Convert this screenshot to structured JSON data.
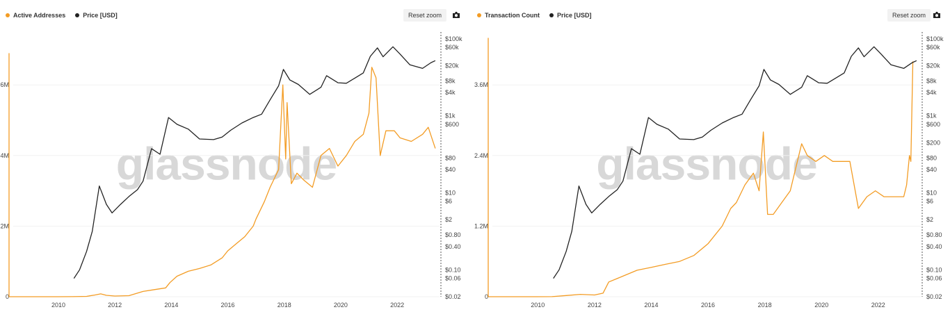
{
  "reset_zoom_label": "Reset zoom",
  "watermark": "glassnode",
  "colors": {
    "orange": "#f39c24",
    "black": "#222222",
    "grid": "#ececec"
  },
  "chart_data": [
    {
      "type": "line",
      "series": [
        {
          "name": "Active Addresses",
          "color": "#f39c24",
          "axis": "left",
          "points": [
            [
              2008.0,
              6900000
            ],
            [
              2008.02,
              0
            ],
            [
              2010.0,
              0
            ],
            [
              2010.5,
              2000
            ],
            [
              2011.0,
              10000
            ],
            [
              2011.3,
              50000
            ],
            [
              2011.5,
              80000
            ],
            [
              2011.7,
              40000
            ],
            [
              2012.0,
              20000
            ],
            [
              2012.5,
              30000
            ],
            [
              2013.0,
              150000
            ],
            [
              2013.4,
              200000
            ],
            [
              2013.8,
              250000
            ],
            [
              2013.95,
              400000
            ],
            [
              2014.2,
              580000
            ],
            [
              2014.6,
              720000
            ],
            [
              2015.0,
              800000
            ],
            [
              2015.4,
              900000
            ],
            [
              2015.8,
              1100000
            ],
            [
              2016.0,
              1300000
            ],
            [
              2016.3,
              1500000
            ],
            [
              2016.6,
              1700000
            ],
            [
              2016.9,
              2000000
            ],
            [
              2017.0,
              2200000
            ],
            [
              2017.3,
              2700000
            ],
            [
              2017.5,
              3100000
            ],
            [
              2017.8,
              3600000
            ],
            [
              2017.95,
              6000000
            ],
            [
              2018.05,
              3900000
            ],
            [
              2018.1,
              5500000
            ],
            [
              2018.25,
              3200000
            ],
            [
              2018.45,
              3500000
            ],
            [
              2018.7,
              3300000
            ],
            [
              2019.0,
              3100000
            ],
            [
              2019.3,
              4000000
            ],
            [
              2019.6,
              4200000
            ],
            [
              2019.9,
              3700000
            ],
            [
              2020.2,
              4000000
            ],
            [
              2020.5,
              4400000
            ],
            [
              2020.8,
              4600000
            ],
            [
              2021.0,
              5200000
            ],
            [
              2021.1,
              6500000
            ],
            [
              2021.25,
              6200000
            ],
            [
              2021.4,
              4000000
            ],
            [
              2021.6,
              4700000
            ],
            [
              2021.9,
              4700000
            ],
            [
              2022.1,
              4500000
            ],
            [
              2022.5,
              4400000
            ],
            [
              2022.9,
              4600000
            ],
            [
              2023.1,
              4800000
            ],
            [
              2023.35,
              4200000
            ]
          ]
        },
        {
          "name": "Price [USD]",
          "color": "#222222",
          "axis": "right",
          "points": [
            [
              2010.55,
              0.06
            ],
            [
              2010.75,
              0.1
            ],
            [
              2011.0,
              0.3
            ],
            [
              2011.2,
              1
            ],
            [
              2011.45,
              15
            ],
            [
              2011.7,
              5
            ],
            [
              2011.9,
              3
            ],
            [
              2012.2,
              5
            ],
            [
              2012.5,
              8
            ],
            [
              2012.8,
              12
            ],
            [
              2013.0,
              20
            ],
            [
              2013.3,
              140
            ],
            [
              2013.6,
              100
            ],
            [
              2013.9,
              900
            ],
            [
              2014.2,
              600
            ],
            [
              2014.6,
              450
            ],
            [
              2015.0,
              250
            ],
            [
              2015.5,
              240
            ],
            [
              2015.8,
              280
            ],
            [
              2016.1,
              420
            ],
            [
              2016.5,
              650
            ],
            [
              2016.9,
              900
            ],
            [
              2017.2,
              1100
            ],
            [
              2017.5,
              2600
            ],
            [
              2017.8,
              6000
            ],
            [
              2017.97,
              16000
            ],
            [
              2018.2,
              8500
            ],
            [
              2018.5,
              6500
            ],
            [
              2018.9,
              3600
            ],
            [
              2019.3,
              5500
            ],
            [
              2019.5,
              11000
            ],
            [
              2019.9,
              7200
            ],
            [
              2020.2,
              7000
            ],
            [
              2020.5,
              9500
            ],
            [
              2020.8,
              13000
            ],
            [
              2021.05,
              35000
            ],
            [
              2021.3,
              58000
            ],
            [
              2021.5,
              34000
            ],
            [
              2021.85,
              62000
            ],
            [
              2022.1,
              40000
            ],
            [
              2022.45,
              21000
            ],
            [
              2022.9,
              17000
            ],
            [
              2023.2,
              24000
            ],
            [
              2023.35,
              27000
            ]
          ]
        }
      ],
      "legend": [
        "Active Addresses",
        "Price [USD]"
      ],
      "x_ticks": [
        "2010",
        "2012",
        "2014",
        "2016",
        "2018",
        "2020",
        "2022"
      ],
      "y_left_ticks": [
        "0",
        "2M",
        "4M",
        "6M"
      ],
      "y_right_ticks": [
        "$0.02",
        "$0.06",
        "$0.10",
        "$0.40",
        "$0.80",
        "$2",
        "$6",
        "$10",
        "$40",
        "$80",
        "$600",
        "$1k",
        "$4k",
        "$8k",
        "$20k",
        "$60k",
        "$100k"
      ],
      "xlim": [
        2008.4,
        2023.5
      ],
      "ylim_left": [
        0,
        7500000
      ],
      "ylim_right": [
        0.02,
        150000
      ],
      "y_right_scale": "log"
    },
    {
      "type": "line",
      "series": [
        {
          "name": "Transaction Count",
          "color": "#f39c24",
          "axis": "left",
          "points": [
            [
              2008.0,
              4400000
            ],
            [
              2008.02,
              0
            ],
            [
              2010.0,
              0
            ],
            [
              2010.5,
              1000
            ],
            [
              2011.0,
              20000
            ],
            [
              2011.5,
              40000
            ],
            [
              2012.0,
              30000
            ],
            [
              2012.3,
              60000
            ],
            [
              2012.5,
              250000
            ],
            [
              2013.0,
              350000
            ],
            [
              2013.5,
              450000
            ],
            [
              2014.0,
              500000
            ],
            [
              2014.5,
              550000
            ],
            [
              2015.0,
              600000
            ],
            [
              2015.5,
              700000
            ],
            [
              2016.0,
              900000
            ],
            [
              2016.5,
              1200000
            ],
            [
              2016.8,
              1500000
            ],
            [
              2017.0,
              1600000
            ],
            [
              2017.3,
              1900000
            ],
            [
              2017.6,
              2100000
            ],
            [
              2017.8,
              1800000
            ],
            [
              2017.95,
              2800000
            ],
            [
              2018.1,
              1400000
            ],
            [
              2018.3,
              1400000
            ],
            [
              2018.6,
              1600000
            ],
            [
              2018.9,
              1800000
            ],
            [
              2019.1,
              2200000
            ],
            [
              2019.3,
              2600000
            ],
            [
              2019.5,
              2400000
            ],
            [
              2019.8,
              2300000
            ],
            [
              2020.1,
              2400000
            ],
            [
              2020.4,
              2300000
            ],
            [
              2020.8,
              2300000
            ],
            [
              2021.0,
              2300000
            ],
            [
              2021.3,
              1500000
            ],
            [
              2021.6,
              1700000
            ],
            [
              2021.9,
              1800000
            ],
            [
              2022.2,
              1700000
            ],
            [
              2022.6,
              1700000
            ],
            [
              2022.9,
              1700000
            ],
            [
              2023.0,
              1900000
            ],
            [
              2023.1,
              2400000
            ],
            [
              2023.15,
              2300000
            ],
            [
              2023.22,
              4000000
            ]
          ]
        },
        {
          "name": "Price [USD]",
          "color": "#222222",
          "axis": "right",
          "points": [
            [
              2010.55,
              0.06
            ],
            [
              2010.75,
              0.1
            ],
            [
              2011.0,
              0.3
            ],
            [
              2011.2,
              1
            ],
            [
              2011.45,
              15
            ],
            [
              2011.7,
              5
            ],
            [
              2011.9,
              3
            ],
            [
              2012.2,
              5
            ],
            [
              2012.5,
              8
            ],
            [
              2012.8,
              12
            ],
            [
              2013.0,
              20
            ],
            [
              2013.3,
              140
            ],
            [
              2013.6,
              100
            ],
            [
              2013.9,
              900
            ],
            [
              2014.2,
              600
            ],
            [
              2014.6,
              450
            ],
            [
              2015.0,
              250
            ],
            [
              2015.5,
              240
            ],
            [
              2015.8,
              280
            ],
            [
              2016.1,
              420
            ],
            [
              2016.5,
              650
            ],
            [
              2016.9,
              900
            ],
            [
              2017.2,
              1100
            ],
            [
              2017.5,
              2600
            ],
            [
              2017.8,
              6000
            ],
            [
              2017.97,
              16000
            ],
            [
              2018.2,
              8500
            ],
            [
              2018.5,
              6500
            ],
            [
              2018.9,
              3600
            ],
            [
              2019.3,
              5500
            ],
            [
              2019.5,
              11000
            ],
            [
              2019.9,
              7200
            ],
            [
              2020.2,
              7000
            ],
            [
              2020.5,
              9500
            ],
            [
              2020.8,
              13000
            ],
            [
              2021.05,
              35000
            ],
            [
              2021.3,
              58000
            ],
            [
              2021.5,
              34000
            ],
            [
              2021.85,
              62000
            ],
            [
              2022.1,
              40000
            ],
            [
              2022.45,
              21000
            ],
            [
              2022.9,
              17000
            ],
            [
              2023.2,
              24000
            ],
            [
              2023.35,
              27000
            ]
          ]
        }
      ],
      "legend": [
        "Transaction Count",
        "Price [USD]"
      ],
      "x_ticks": [
        "2010",
        "2012",
        "2014",
        "2016",
        "2018",
        "2020",
        "2022"
      ],
      "y_left_ticks": [
        "0",
        "1.2M",
        "2.4M",
        "3.6M"
      ],
      "y_right_ticks": [
        "$0.02",
        "$0.06",
        "$0.10",
        "$0.40",
        "$0.80",
        "$2",
        "$6",
        "$10",
        "$40",
        "$80",
        "$200",
        "$600",
        "$1k",
        "$4k",
        "$8k",
        "$20k",
        "$60k",
        "$100k"
      ],
      "xlim": [
        2008.4,
        2023.5
      ],
      "ylim_left": [
        0,
        4500000
      ],
      "ylim_right": [
        0.02,
        150000
      ],
      "y_right_scale": "log"
    }
  ]
}
